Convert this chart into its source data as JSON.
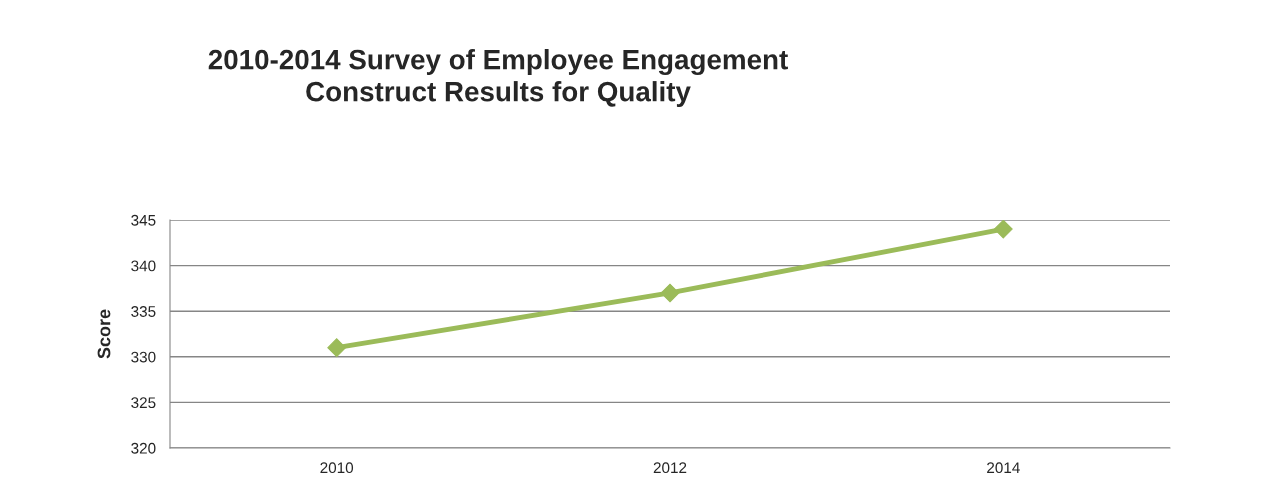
{
  "chart_data": {
    "type": "line",
    "title": "2010-2014 Survey of Employee Engagement\nConstruct Results for Quality",
    "ylabel": "Score",
    "categories": [
      "2010",
      "2012",
      "2014"
    ],
    "series": [
      {
        "color": "#9bbb59",
        "values": [
          331,
          337,
          344
        ]
      }
    ],
    "ylim": [
      320,
      345
    ],
    "yticks": [
      320,
      325,
      330,
      335,
      340,
      345
    ],
    "grid": "y",
    "marker": "diamond",
    "line_style": "solid",
    "legend": false
  }
}
